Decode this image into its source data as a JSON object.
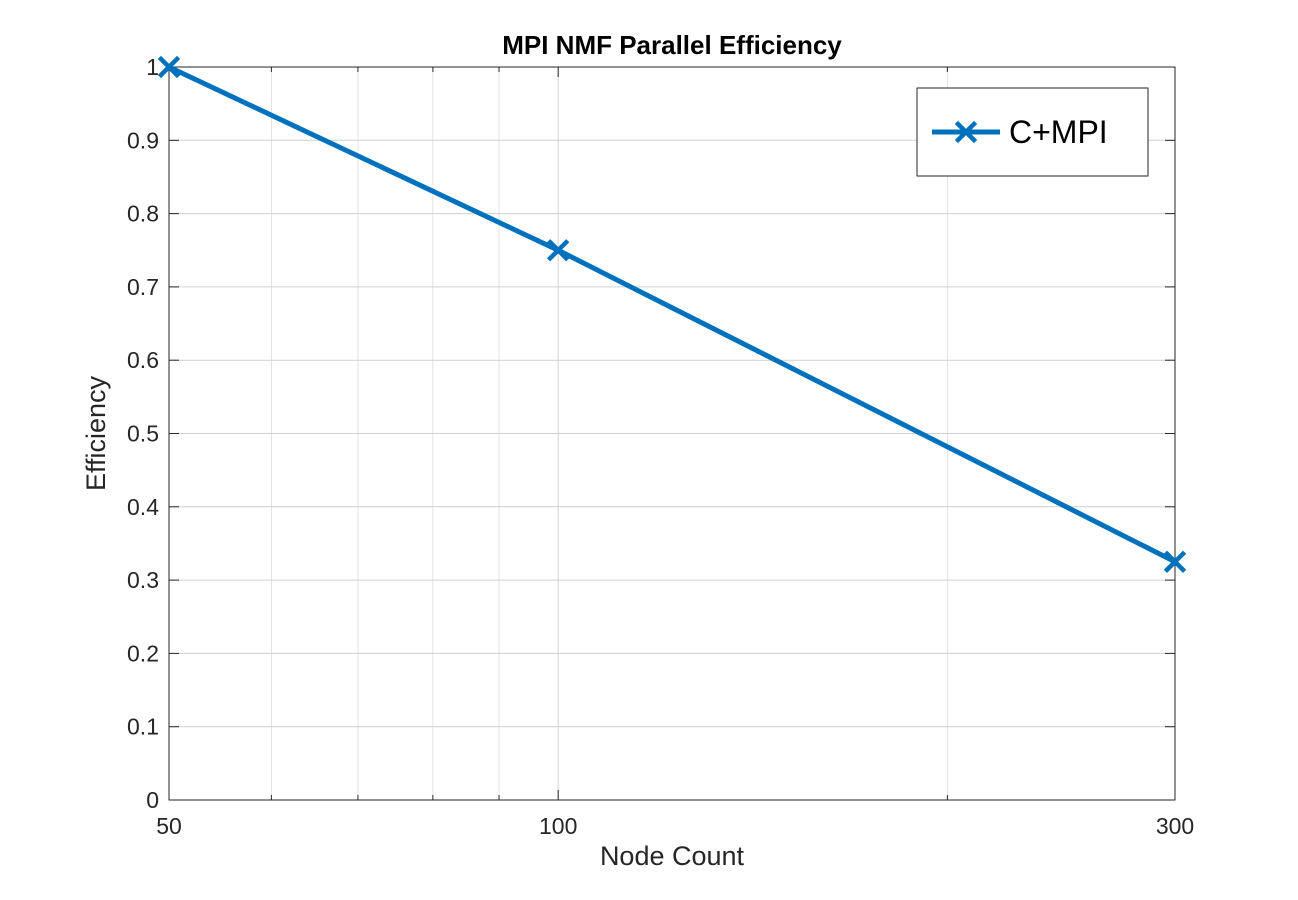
{
  "chart_data": {
    "type": "line",
    "title": "MPI NMF Parallel Efficiency",
    "xlabel": "Node Count",
    "ylabel": "Efficiency",
    "x_scale": "log",
    "xlim": [
      50,
      300
    ],
    "ylim": [
      0,
      1
    ],
    "x_ticks": [
      50,
      100,
      300
    ],
    "x_tick_labels": [
      "50",
      "100",
      "300"
    ],
    "y_ticks": [
      0,
      0.1,
      0.2,
      0.3,
      0.4,
      0.5,
      0.6,
      0.7,
      0.8,
      0.9,
      1
    ],
    "y_tick_labels": [
      "0",
      "0.1",
      "0.2",
      "0.3",
      "0.4",
      "0.5",
      "0.6",
      "0.7",
      "0.8",
      "0.9",
      "1"
    ],
    "grid": true,
    "legend_position": "top-right",
    "marker": "x",
    "series": [
      {
        "name": "C+MPI",
        "color": "#0072bd",
        "x": [
          50,
          100,
          300
        ],
        "y": [
          1.0,
          0.75,
          0.325
        ]
      }
    ]
  }
}
